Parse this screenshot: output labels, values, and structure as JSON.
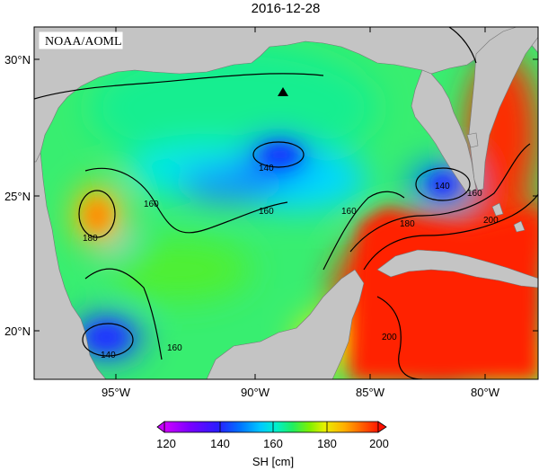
{
  "title": "2016-12-28",
  "badge": "NOAA/AOML",
  "marker": "station-triangle",
  "latitude_ticks": [
    "30°N",
    "25°N",
    "20°N"
  ],
  "longitude_ticks": [
    "95°W",
    "90°W",
    "85°W",
    "80°W"
  ],
  "contour_labels": [
    "140",
    "160",
    "180",
    "140",
    "160",
    "160",
    "180",
    "160",
    "200",
    "140",
    "160",
    "200"
  ],
  "colorbar": {
    "ticks": [
      "120",
      "140",
      "160",
      "180",
      "200"
    ],
    "label": "SH [cm]",
    "colors": [
      "#c000ff",
      "#7a00ff",
      "#2a1cff",
      "#005cff",
      "#00b0ff",
      "#00f0e0",
      "#00f08a",
      "#40ee30",
      "#a8f000",
      "#f4f000",
      "#ffb000",
      "#ff6000",
      "#ff1e00"
    ]
  },
  "colors": {
    "land": "#c4c4c4",
    "frame": "#000000"
  }
}
